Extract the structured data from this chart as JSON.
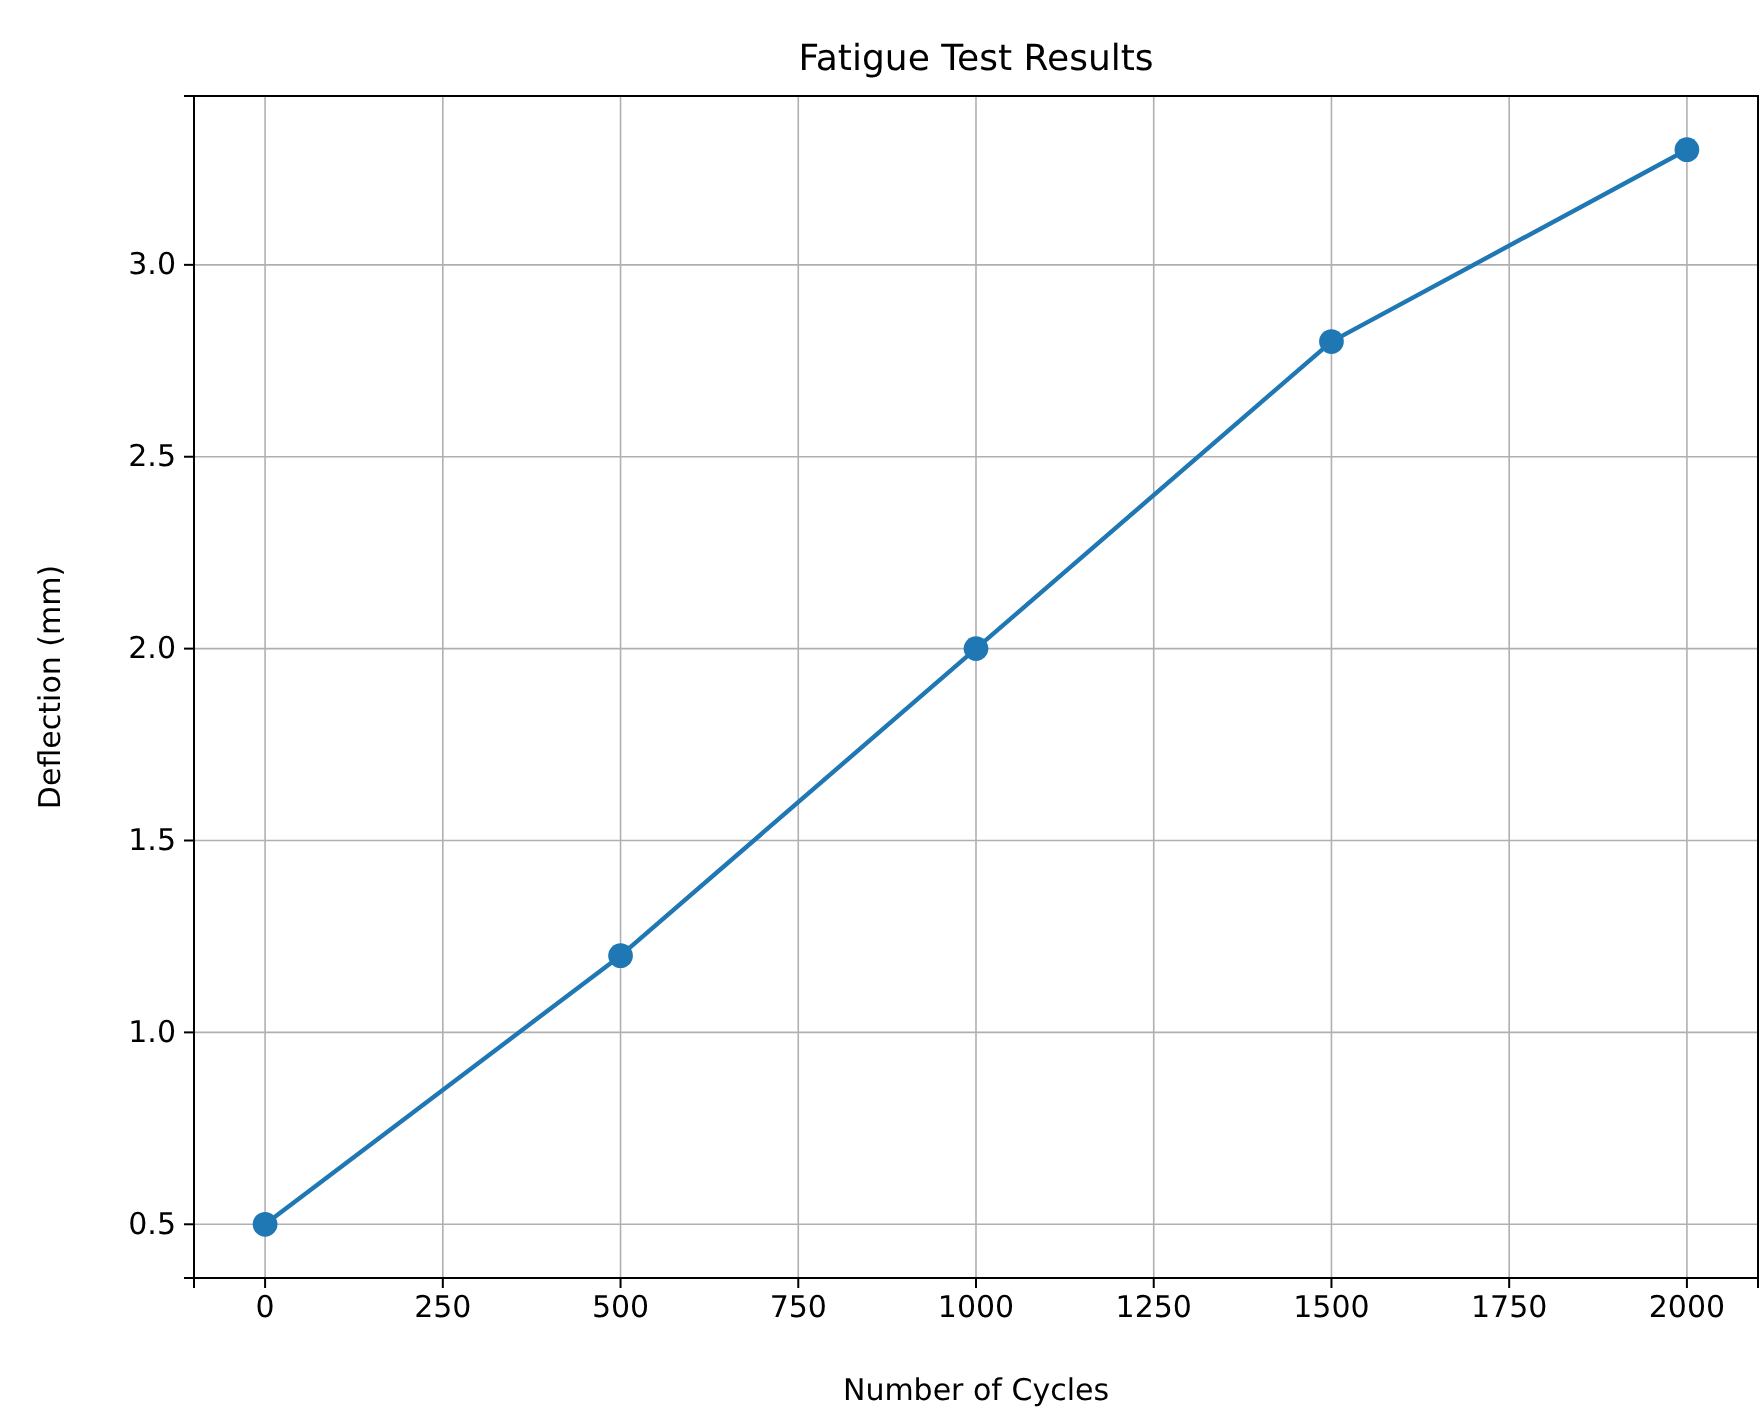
{
  "chart_data": {
    "type": "line",
    "title": "Fatigue Test Results",
    "xlabel": "Number of Cycles",
    "ylabel": "Deflection (mm)",
    "x": [
      0,
      500,
      1000,
      1500,
      2000
    ],
    "series": [
      {
        "color": "#1f77b4",
        "values": [
          0.5,
          1.2,
          2.0,
          2.8,
          3.3
        ]
      }
    ],
    "xlim": [
      -100,
      2100
    ],
    "xticks": [
      0,
      250,
      500,
      750,
      1000,
      1250,
      1500,
      1750,
      2000
    ],
    "ylim": [
      0.36,
      3.44
    ],
    "yticks": [
      {
        "value": 0.5,
        "label": "0.5"
      },
      {
        "value": 1.0,
        "label": "1.0"
      },
      {
        "value": 1.5,
        "label": "1.5"
      },
      {
        "value": 2.0,
        "label": "2.0"
      },
      {
        "value": 2.5,
        "label": "2.5"
      },
      {
        "value": 3.0,
        "label": "3.0"
      }
    ],
    "grid": true,
    "marker": "circle",
    "line_style": "solid"
  }
}
